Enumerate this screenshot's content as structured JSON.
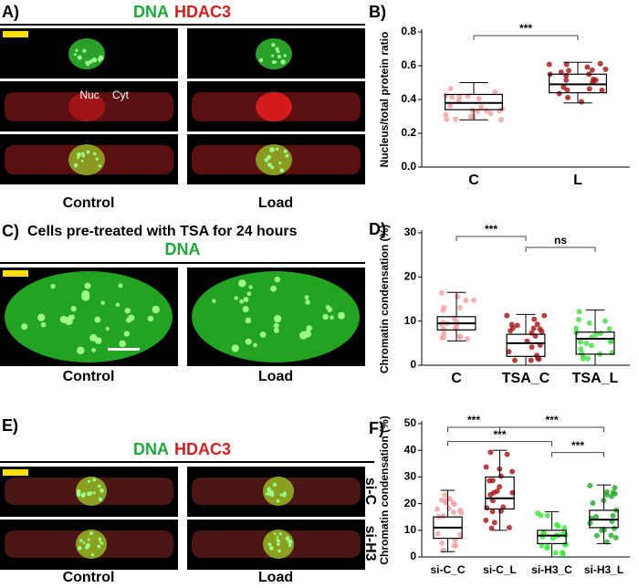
{
  "panels": {
    "a": {
      "label": "A)",
      "dna": "DNA",
      "hdac3": "HDAC3",
      "nuc": "Nuc",
      "cyt": "Cyt",
      "conditions": [
        "Control",
        "Load"
      ]
    },
    "c": {
      "label": "C)",
      "title": "Cells pre-treated with TSA for 24 hours",
      "dna": "DNA",
      "conditions": [
        "Control",
        "Load"
      ]
    },
    "e": {
      "label": "E)",
      "dna": "DNA",
      "hdac3": "HDAC3",
      "rows": [
        "si-C",
        "si-H3"
      ],
      "conditions": [
        "Control",
        "Load"
      ]
    }
  },
  "chart_data": [
    {
      "type": "box",
      "panel_label": "B)",
      "ylabel": "Nucleus/total protein ratio",
      "categories": [
        "C",
        "L"
      ],
      "colors": [
        "#f4a0a0",
        "#a31212"
      ],
      "stats": {
        "min": [
          0.28,
          0.38
        ],
        "q1": [
          0.34,
          0.44
        ],
        "median": [
          0.38,
          0.49
        ],
        "q3": [
          0.43,
          0.55
        ],
        "max": [
          0.5,
          0.62
        ]
      },
      "ylim": [
        0,
        0.8
      ],
      "yticks": [
        {
          "value": 0,
          "label": "0.0"
        },
        {
          "value": 0.2,
          "label": "0.2"
        },
        {
          "value": 0.4,
          "label": "0.4"
        },
        {
          "value": 0.6,
          "label": "0.6"
        },
        {
          "value": 0.8,
          "label": "0.8"
        }
      ],
      "annotations": [
        {
          "text": "***",
          "categories": [
            "C",
            "L"
          ]
        }
      ]
    },
    {
      "type": "box",
      "panel_label": "D)",
      "ylabel": "Chromatin condensation (%)",
      "categories": [
        "C",
        "TSA_C",
        "TSA_L"
      ],
      "colors": [
        "#f4a0a0",
        "#a31212",
        "#44dd44"
      ],
      "stats": {
        "min": [
          5.5,
          0,
          0
        ],
        "q1": [
          8,
          2,
          2.5
        ],
        "median": [
          9.5,
          5,
          6
        ],
        "q3": [
          11,
          7,
          7.5
        ],
        "max": [
          16.5,
          11.5,
          12.5
        ]
      },
      "ylim": [
        0,
        30
      ],
      "yticks": [
        0,
        10,
        20,
        30
      ],
      "annotations": [
        {
          "text": "***",
          "categories": [
            "C",
            "TSA_C"
          ]
        },
        {
          "text": "ns",
          "categories": [
            "TSA_C",
            "TSA_L"
          ]
        }
      ]
    },
    {
      "type": "box",
      "panel_label": "F)",
      "ylabel": "Chromatin condensation (%)",
      "categories": [
        "si-C_C",
        "si-C_L",
        "si-H3_C",
        "si-H3_L"
      ],
      "colors": [
        "#f4a0a0",
        "#a31212",
        "#33ee33",
        "#22aa22"
      ],
      "stats": {
        "min": [
          2,
          10,
          0,
          5
        ],
        "q1": [
          7,
          18,
          5,
          11
        ],
        "median": [
          11,
          22,
          8,
          14
        ],
        "q3": [
          15,
          30,
          10,
          17.5
        ],
        "max": [
          25,
          40,
          17,
          27
        ]
      },
      "ylim": [
        0,
        50
      ],
      "yticks": [
        0,
        10,
        20,
        30,
        40,
        50
      ],
      "annotations": [
        {
          "text": "***",
          "categories": [
            "si-C_C",
            "si-C_L"
          ]
        },
        {
          "text": "***",
          "categories": [
            "si-C_L",
            "si-H3_L"
          ]
        },
        {
          "text": "***",
          "categories": [
            "si-C_C",
            "si-H3_C"
          ]
        },
        {
          "text": "***",
          "categories": [
            "si-H3_C",
            "si-H3_L"
          ]
        }
      ]
    }
  ]
}
